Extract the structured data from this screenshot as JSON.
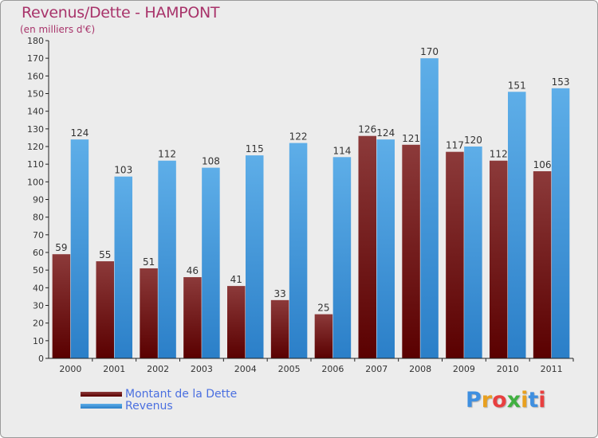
{
  "chart_data": {
    "type": "bar",
    "title": "Revenus/Dette - HAMPONT",
    "subtitle": "(en milliers d'€)",
    "categories": [
      "2000",
      "2001",
      "2002",
      "2003",
      "2004",
      "2005",
      "2006",
      "2007",
      "2008",
      "2009",
      "2010",
      "2011"
    ],
    "series": [
      {
        "name": "Montant de la Dette",
        "values": [
          59,
          55,
          51,
          46,
          41,
          33,
          25,
          126,
          121,
          117,
          112,
          106
        ]
      },
      {
        "name": "Revenus",
        "values": [
          124,
          103,
          112,
          108,
          115,
          122,
          114,
          124,
          170,
          120,
          151,
          153
        ]
      }
    ],
    "ylim": [
      0,
      180
    ],
    "ytick_step": 10,
    "grid": false,
    "legend_position": "bottom-left"
  },
  "colors": {
    "title": "#a8336a",
    "dette_light": "#8c3a3a",
    "dette_dark": "#5a0000",
    "revenus_light": "#5eaee8",
    "revenus_dark": "#2b7fc8",
    "axis": "#222222",
    "label": "#333333",
    "legend_text": "#4a6fe0"
  },
  "legend": {
    "dette_label": "Montant de la Dette",
    "revenus_label": "Revenus"
  },
  "logo": {
    "letters": [
      "P",
      "r",
      "o",
      "x",
      "i",
      "t",
      "i"
    ],
    "colors": [
      "#3f8fe0",
      "#e8a020",
      "#e84040",
      "#40b040",
      "#e8a020",
      "#3f8fe0",
      "#e84040"
    ]
  }
}
